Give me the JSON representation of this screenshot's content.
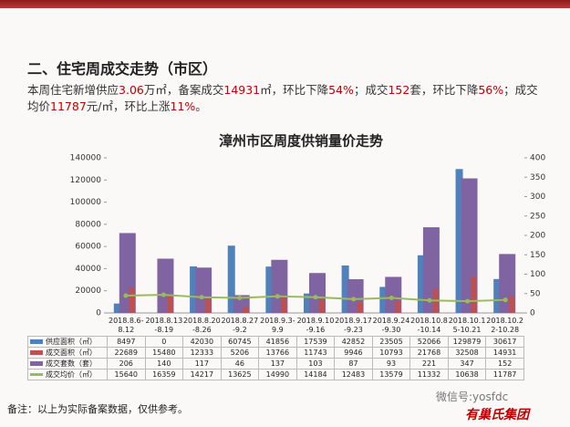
{
  "header": {
    "title": "二、住宅周成交走势（市区）"
  },
  "summary": [
    "本周住宅新增供应",
    "3.06",
    "万㎡，备案成交",
    "14931",
    "㎡，环比下降",
    "54%",
    "；成交",
    "152",
    "套，环比下降",
    "56%",
    "；成交均价",
    "11787",
    "元/㎡，环比上涨",
    "11%",
    "。"
  ],
  "chart_data": {
    "type": "bar",
    "title": "漳州市区周度供销量价走势",
    "categories": [
      "2018.8.6-8.12",
      "2018.8.13-8.19",
      "2018.8.20-8.26",
      "2018.8.27-9.2",
      "2018.9.3-9.9",
      "2018.9.10-9.16",
      "2018.9.17-9.23",
      "2018.9.24-9.30",
      "2018.10.8-10.14",
      "2018.10.15-10.21",
      "2018.10.22-10.28"
    ],
    "series": [
      {
        "name": "供应面积（㎡）",
        "type": "bar",
        "color": "#4f81bd",
        "values": [
          8497,
          0,
          42030,
          60745,
          41856,
          17539,
          42852,
          23505,
          52066,
          129879,
          30617
        ]
      },
      {
        "name": "成交面积（㎡）",
        "type": "bar",
        "color": "#c0504d",
        "values": [
          22689,
          15480,
          12333,
          5206,
          13766,
          11743,
          9946,
          10793,
          21768,
          32508,
          14931
        ]
      },
      {
        "name": "成交套数（套）",
        "type": "bar",
        "axis": "y2",
        "color": "#8064a2",
        "values": [
          206,
          140,
          117,
          46,
          137,
          103,
          87,
          93,
          221,
          347,
          152
        ]
      },
      {
        "name": "成交均价（㎡）",
        "type": "line",
        "color": "#9bbb59",
        "values": [
          15640,
          16359,
          14217,
          13625,
          14990,
          14184,
          12483,
          13579,
          11332,
          10638,
          11787
        ]
      }
    ],
    "ylim": [
      0,
      140000
    ],
    "yticks": [
      0,
      20000,
      40000,
      60000,
      80000,
      100000,
      120000,
      140000
    ],
    "y2lim": [
      0,
      400
    ],
    "y2ticks": [
      0,
      50,
      100,
      150,
      200,
      250,
      300,
      350,
      400
    ],
    "grid": false
  },
  "footer": {
    "note": "备注：以上为实际备案数据，仅供参考。",
    "wechat": "微信号:yosfdc",
    "brand": "有巢氏集团"
  }
}
